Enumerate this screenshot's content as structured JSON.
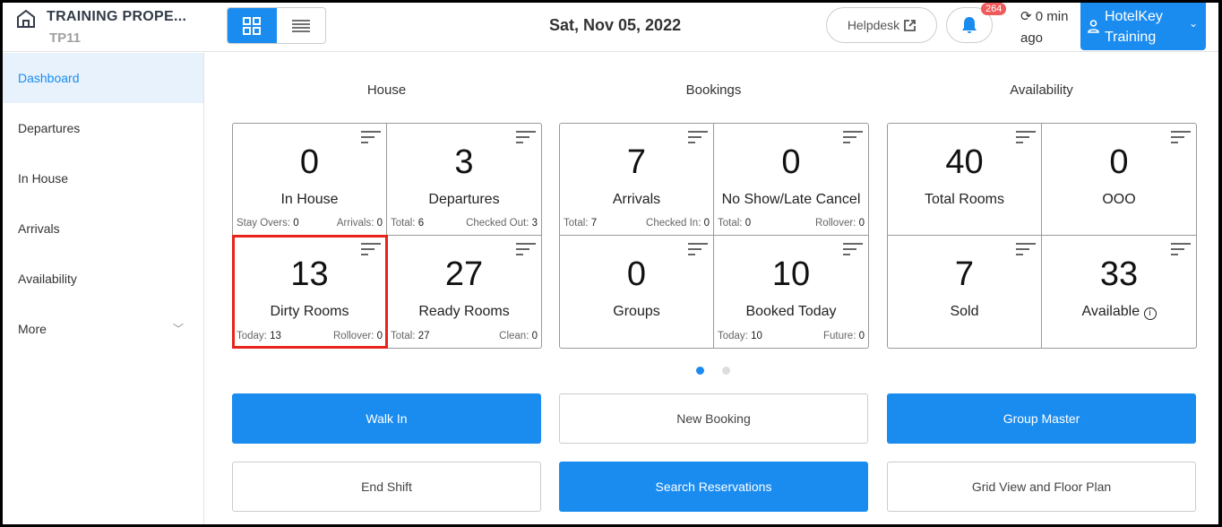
{
  "header": {
    "property_name": "TRAINING PROPE...",
    "property_code": "TP11",
    "date": "Sat, Nov 05, 2022",
    "helpdesk": "Helpdesk",
    "notifications": "264",
    "sync": "0 min ago",
    "user": "HotelKey Training"
  },
  "sidebar": {
    "items": [
      {
        "label": "Dashboard",
        "active": true
      },
      {
        "label": "Departures"
      },
      {
        "label": "In House"
      },
      {
        "label": "Arrivals"
      },
      {
        "label": "Availability"
      },
      {
        "label": "More"
      }
    ]
  },
  "groups": [
    {
      "title": "House",
      "tiles": [
        {
          "value": "0",
          "label": "In House",
          "left_label": "Stay Overs:",
          "left_value": "0",
          "right_label": "Arrivals:",
          "right_value": "0"
        },
        {
          "value": "3",
          "label": "Departures",
          "left_label": "Total:",
          "left_value": "6",
          "right_label": "Checked Out:",
          "right_value": "3"
        },
        {
          "value": "13",
          "label": "Dirty Rooms",
          "left_label": "Today:",
          "left_value": "13",
          "right_label": "Rollover:",
          "right_value": "0",
          "highlighted": true
        },
        {
          "value": "27",
          "label": "Ready Rooms",
          "left_label": "Total:",
          "left_value": "27",
          "right_label": "Clean:",
          "right_value": "0"
        }
      ]
    },
    {
      "title": "Bookings",
      "tiles": [
        {
          "value": "7",
          "label": "Arrivals",
          "left_label": "Total:",
          "left_value": "7",
          "right_label": "Checked In:",
          "right_value": "0"
        },
        {
          "value": "0",
          "label": "No Show/Late Cancel",
          "left_label": "Total:",
          "left_value": "0",
          "right_label": "Rollover:",
          "right_value": "0"
        },
        {
          "value": "0",
          "label": "Groups"
        },
        {
          "value": "10",
          "label": "Booked Today",
          "left_label": "Today:",
          "left_value": "10",
          "right_label": "Future:",
          "right_value": "0"
        }
      ]
    },
    {
      "title": "Availability",
      "tiles": [
        {
          "value": "40",
          "label": "Total Rooms"
        },
        {
          "value": "0",
          "label": "OOO"
        },
        {
          "value": "7",
          "label": "Sold"
        },
        {
          "value": "33",
          "label": "Available"
        }
      ]
    }
  ],
  "actions": [
    "Walk In",
    "New Booking",
    "Group Master",
    "End Shift",
    "Search Reservations",
    "Grid View and Floor Plan"
  ],
  "colors": {
    "accent": "#1a8cf0",
    "highlight": "#e8231c",
    "badge": "#f05a5a"
  }
}
